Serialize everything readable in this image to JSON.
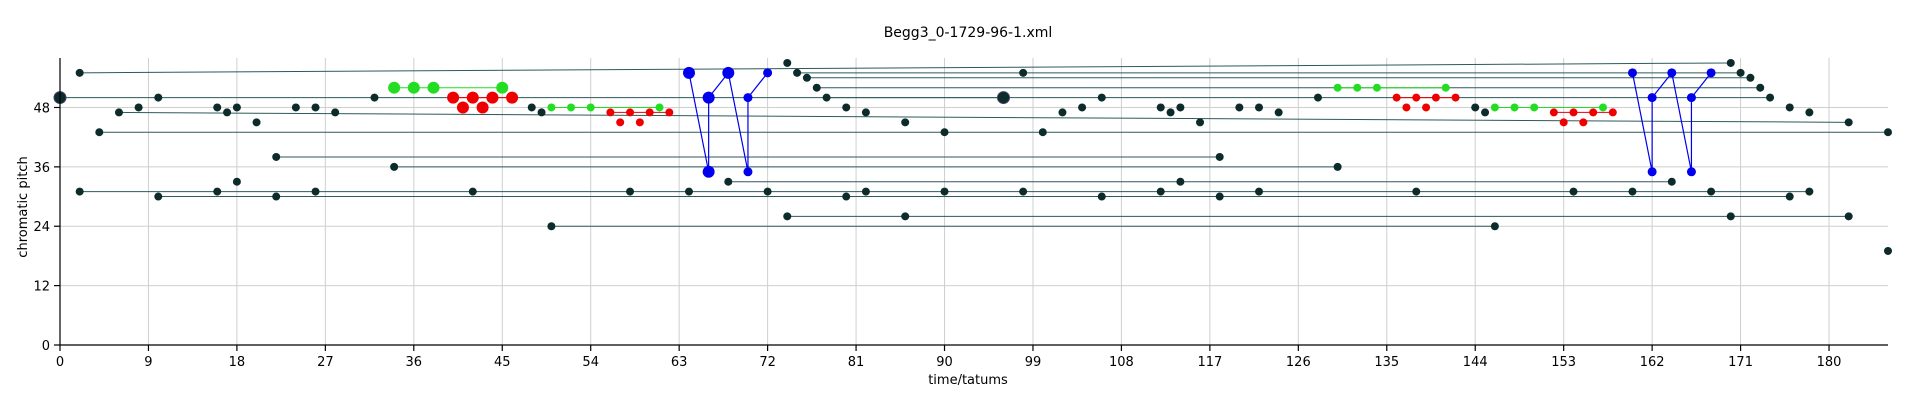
{
  "chart_data": {
    "type": "scatter",
    "title": "Begg3_0-1729-96-1.xml",
    "xlabel": "time/tatums",
    "ylabel": "chromatic pitch",
    "xlim": [
      0,
      186
    ],
    "ylim": [
      0,
      58
    ],
    "xticks": [
      0,
      9,
      18,
      27,
      36,
      45,
      54,
      63,
      72,
      81,
      90,
      99,
      108,
      117,
      126,
      135,
      144,
      153,
      162,
      171,
      180
    ],
    "yticks": [
      0,
      12,
      24,
      36,
      48
    ],
    "grid": true,
    "colors": {
      "dark": "#0d2b2b",
      "link": "#2d5a5a",
      "blue": "#0000ee",
      "green": "#22dd22",
      "red": "#ee0000"
    },
    "notes": [
      {
        "t": 2,
        "p": 55
      },
      {
        "t": 0,
        "p": 50
      },
      {
        "t": 2,
        "p": 31
      },
      {
        "t": 4,
        "p": 43
      },
      {
        "t": 6,
        "p": 47
      },
      {
        "t": 8,
        "p": 48
      },
      {
        "t": 10,
        "p": 50
      },
      {
        "t": 10,
        "p": 30
      },
      {
        "t": 16,
        "p": 48
      },
      {
        "t": 16,
        "p": 31
      },
      {
        "t": 17,
        "p": 47
      },
      {
        "t": 18,
        "p": 48
      },
      {
        "t": 18,
        "p": 33
      },
      {
        "t": 20,
        "p": 45
      },
      {
        "t": 22,
        "p": 38
      },
      {
        "t": 22,
        "p": 30
      },
      {
        "t": 24,
        "p": 48
      },
      {
        "t": 26,
        "p": 48
      },
      {
        "t": 26,
        "p": 31
      },
      {
        "t": 28,
        "p": 47
      },
      {
        "t": 32,
        "p": 50
      },
      {
        "t": 34,
        "p": 36
      },
      {
        "t": 42,
        "p": 31
      },
      {
        "t": 48,
        "p": 48
      },
      {
        "t": 49,
        "p": 47
      },
      {
        "t": 50,
        "p": 24
      },
      {
        "t": 58,
        "p": 31
      },
      {
        "t": 64,
        "p": 31
      },
      {
        "t": 68,
        "p": 33
      },
      {
        "t": 72,
        "p": 31
      },
      {
        "t": 74,
        "p": 57
      },
      {
        "t": 74,
        "p": 26
      },
      {
        "t": 75,
        "p": 55
      },
      {
        "t": 76,
        "p": 54
      },
      {
        "t": 77,
        "p": 52
      },
      {
        "t": 78,
        "p": 50
      },
      {
        "t": 80,
        "p": 48
      },
      {
        "t": 80,
        "p": 30
      },
      {
        "t": 82,
        "p": 47
      },
      {
        "t": 82,
        "p": 31
      },
      {
        "t": 86,
        "p": 45
      },
      {
        "t": 86,
        "p": 26
      },
      {
        "t": 90,
        "p": 43
      },
      {
        "t": 90,
        "p": 31
      },
      {
        "t": 96,
        "p": 50
      },
      {
        "t": 98,
        "p": 55
      },
      {
        "t": 98,
        "p": 31
      },
      {
        "t": 100,
        "p": 43
      },
      {
        "t": 102,
        "p": 47
      },
      {
        "t": 104,
        "p": 48
      },
      {
        "t": 106,
        "p": 50
      },
      {
        "t": 106,
        "p": 30
      },
      {
        "t": 112,
        "p": 48
      },
      {
        "t": 112,
        "p": 31
      },
      {
        "t": 113,
        "p": 47
      },
      {
        "t": 114,
        "p": 48
      },
      {
        "t": 114,
        "p": 33
      },
      {
        "t": 116,
        "p": 45
      },
      {
        "t": 118,
        "p": 38
      },
      {
        "t": 118,
        "p": 30
      },
      {
        "t": 120,
        "p": 48
      },
      {
        "t": 122,
        "p": 48
      },
      {
        "t": 122,
        "p": 31
      },
      {
        "t": 124,
        "p": 47
      },
      {
        "t": 128,
        "p": 50
      },
      {
        "t": 130,
        "p": 36
      },
      {
        "t": 138,
        "p": 31
      },
      {
        "t": 144,
        "p": 48
      },
      {
        "t": 145,
        "p": 47
      },
      {
        "t": 146,
        "p": 24
      },
      {
        "t": 154,
        "p": 31
      },
      {
        "t": 160,
        "p": 31
      },
      {
        "t": 164,
        "p": 33
      },
      {
        "t": 168,
        "p": 31
      },
      {
        "t": 170,
        "p": 57
      },
      {
        "t": 170,
        "p": 26
      },
      {
        "t": 171,
        "p": 55
      },
      {
        "t": 172,
        "p": 54
      },
      {
        "t": 173,
        "p": 52
      },
      {
        "t": 174,
        "p": 50
      },
      {
        "t": 176,
        "p": 48
      },
      {
        "t": 176,
        "p": 30
      },
      {
        "t": 178,
        "p": 47
      },
      {
        "t": 178,
        "p": 31
      },
      {
        "t": 182,
        "p": 45
      },
      {
        "t": 182,
        "p": 26
      },
      {
        "t": 186,
        "p": 43
      },
      {
        "t": 186,
        "p": 19
      }
    ],
    "big_dark_notes": [
      {
        "t": 0,
        "p": 50
      },
      {
        "t": 96,
        "p": 50
      }
    ],
    "blue_notes": [
      {
        "t": 64,
        "p": 55,
        "big": true
      },
      {
        "t": 66,
        "p": 50,
        "big": true
      },
      {
        "t": 66,
        "p": 35,
        "big": true
      },
      {
        "t": 68,
        "p": 55,
        "big": true
      },
      {
        "t": 70,
        "p": 50,
        "big": false
      },
      {
        "t": 70,
        "p": 35,
        "big": false
      },
      {
        "t": 72,
        "p": 55,
        "big": false
      },
      {
        "t": 160,
        "p": 55,
        "big": false
      },
      {
        "t": 162,
        "p": 50,
        "big": false
      },
      {
        "t": 162,
        "p": 35,
        "big": false
      },
      {
        "t": 164,
        "p": 55,
        "big": false
      },
      {
        "t": 166,
        "p": 50,
        "big": false
      },
      {
        "t": 166,
        "p": 35,
        "big": false
      },
      {
        "t": 168,
        "p": 55,
        "big": false
      }
    ],
    "blue_lines": [
      [
        [
          64,
          55
        ],
        [
          66,
          35
        ],
        [
          66,
          50
        ],
        [
          68,
          55
        ],
        [
          70,
          35
        ],
        [
          70,
          50
        ],
        [
          72,
          55
        ]
      ],
      [
        [
          160,
          55
        ],
        [
          162,
          35
        ],
        [
          162,
          50
        ],
        [
          164,
          55
        ],
        [
          166,
          35
        ],
        [
          166,
          50
        ],
        [
          168,
          55
        ]
      ]
    ],
    "green_notes": [
      {
        "t": 34,
        "p": 52,
        "big": true
      },
      {
        "t": 36,
        "p": 52,
        "big": true
      },
      {
        "t": 38,
        "p": 52,
        "big": true
      },
      {
        "t": 45,
        "p": 52,
        "big": true
      },
      {
        "t": 50,
        "p": 48,
        "big": false
      },
      {
        "t": 52,
        "p": 48,
        "big": false
      },
      {
        "t": 54,
        "p": 48,
        "big": false
      },
      {
        "t": 61,
        "p": 48,
        "big": false
      },
      {
        "t": 130,
        "p": 52,
        "big": false
      },
      {
        "t": 132,
        "p": 52,
        "big": false
      },
      {
        "t": 134,
        "p": 52,
        "big": false
      },
      {
        "t": 141,
        "p": 52,
        "big": false
      },
      {
        "t": 146,
        "p": 48,
        "big": false
      },
      {
        "t": 148,
        "p": 48,
        "big": false
      },
      {
        "t": 150,
        "p": 48,
        "big": false
      },
      {
        "t": 157,
        "p": 48,
        "big": false
      }
    ],
    "red_notes": [
      {
        "t": 40,
        "p": 50,
        "big": true
      },
      {
        "t": 41,
        "p": 48,
        "big": true
      },
      {
        "t": 42,
        "p": 50,
        "big": true
      },
      {
        "t": 43,
        "p": 48,
        "big": true
      },
      {
        "t": 44,
        "p": 50,
        "big": true
      },
      {
        "t": 46,
        "p": 50,
        "big": true
      },
      {
        "t": 56,
        "p": 47,
        "big": false
      },
      {
        "t": 57,
        "p": 45,
        "big": false
      },
      {
        "t": 58,
        "p": 47,
        "big": false
      },
      {
        "t": 59,
        "p": 45,
        "big": false
      },
      {
        "t": 60,
        "p": 47,
        "big": false
      },
      {
        "t": 62,
        "p": 47,
        "big": false
      },
      {
        "t": 136,
        "p": 50,
        "big": false
      },
      {
        "t": 137,
        "p": 48,
        "big": false
      },
      {
        "t": 138,
        "p": 50,
        "big": false
      },
      {
        "t": 139,
        "p": 48,
        "big": false
      },
      {
        "t": 140,
        "p": 50,
        "big": false
      },
      {
        "t": 142,
        "p": 50,
        "big": false
      },
      {
        "t": 152,
        "p": 47,
        "big": false
      },
      {
        "t": 153,
        "p": 45,
        "big": false
      },
      {
        "t": 154,
        "p": 47,
        "big": false
      },
      {
        "t": 155,
        "p": 45,
        "big": false
      },
      {
        "t": 156,
        "p": 47,
        "big": false
      },
      {
        "t": 158,
        "p": 47,
        "big": false
      }
    ],
    "links": [
      {
        "t1": 2,
        "t2": 170,
        "p1": 55,
        "p2": 57
      },
      {
        "t1": 0,
        "t2": 96,
        "p1": 50,
        "p2": 50
      },
      {
        "t1": 4,
        "t2": 186,
        "p1": 43,
        "p2": 43
      },
      {
        "t1": 6,
        "t2": 182,
        "p1": 47,
        "p2": 45
      },
      {
        "t1": 2,
        "t2": 178,
        "p1": 31,
        "p2": 31
      },
      {
        "t1": 10,
        "t2": 176,
        "p1": 30,
        "p2": 30
      },
      {
        "t1": 22,
        "t2": 118,
        "p1": 38,
        "p2": 38
      },
      {
        "t1": 34,
        "t2": 130,
        "p1": 36,
        "p2": 36
      },
      {
        "t1": 50,
        "t2": 146,
        "p1": 24,
        "p2": 24
      },
      {
        "t1": 74,
        "t2": 182,
        "p1": 26,
        "p2": 26
      },
      {
        "t1": 75,
        "t2": 171,
        "p1": 55,
        "p2": 55
      },
      {
        "t1": 76,
        "t2": 172,
        "p1": 54,
        "p2": 54
      },
      {
        "t1": 77,
        "t2": 173,
        "p1": 52,
        "p2": 52
      },
      {
        "t1": 78,
        "t2": 174,
        "p1": 50,
        "p2": 50
      },
      {
        "t1": 68,
        "t2": 164,
        "p1": 33,
        "p2": 33
      },
      {
        "t1": 34,
        "t2": 45,
        "p1": 52,
        "p2": 52,
        "color": "green"
      },
      {
        "t1": 50,
        "t2": 61,
        "p1": 48,
        "p2": 48,
        "color": "green"
      },
      {
        "t1": 130,
        "t2": 141,
        "p1": 52,
        "p2": 52,
        "color": "green"
      },
      {
        "t1": 146,
        "t2": 157,
        "p1": 48,
        "p2": 48,
        "color": "green"
      },
      {
        "t1": 40,
        "t2": 46,
        "p1": 50,
        "p2": 50,
        "color": "red"
      },
      {
        "t1": 56,
        "t2": 62,
        "p1": 47,
        "p2": 47,
        "color": "red"
      },
      {
        "t1": 136,
        "t2": 142,
        "p1": 50,
        "p2": 50,
        "color": "red"
      },
      {
        "t1": 152,
        "t2": 158,
        "p1": 47,
        "p2": 47,
        "color": "red"
      }
    ]
  }
}
